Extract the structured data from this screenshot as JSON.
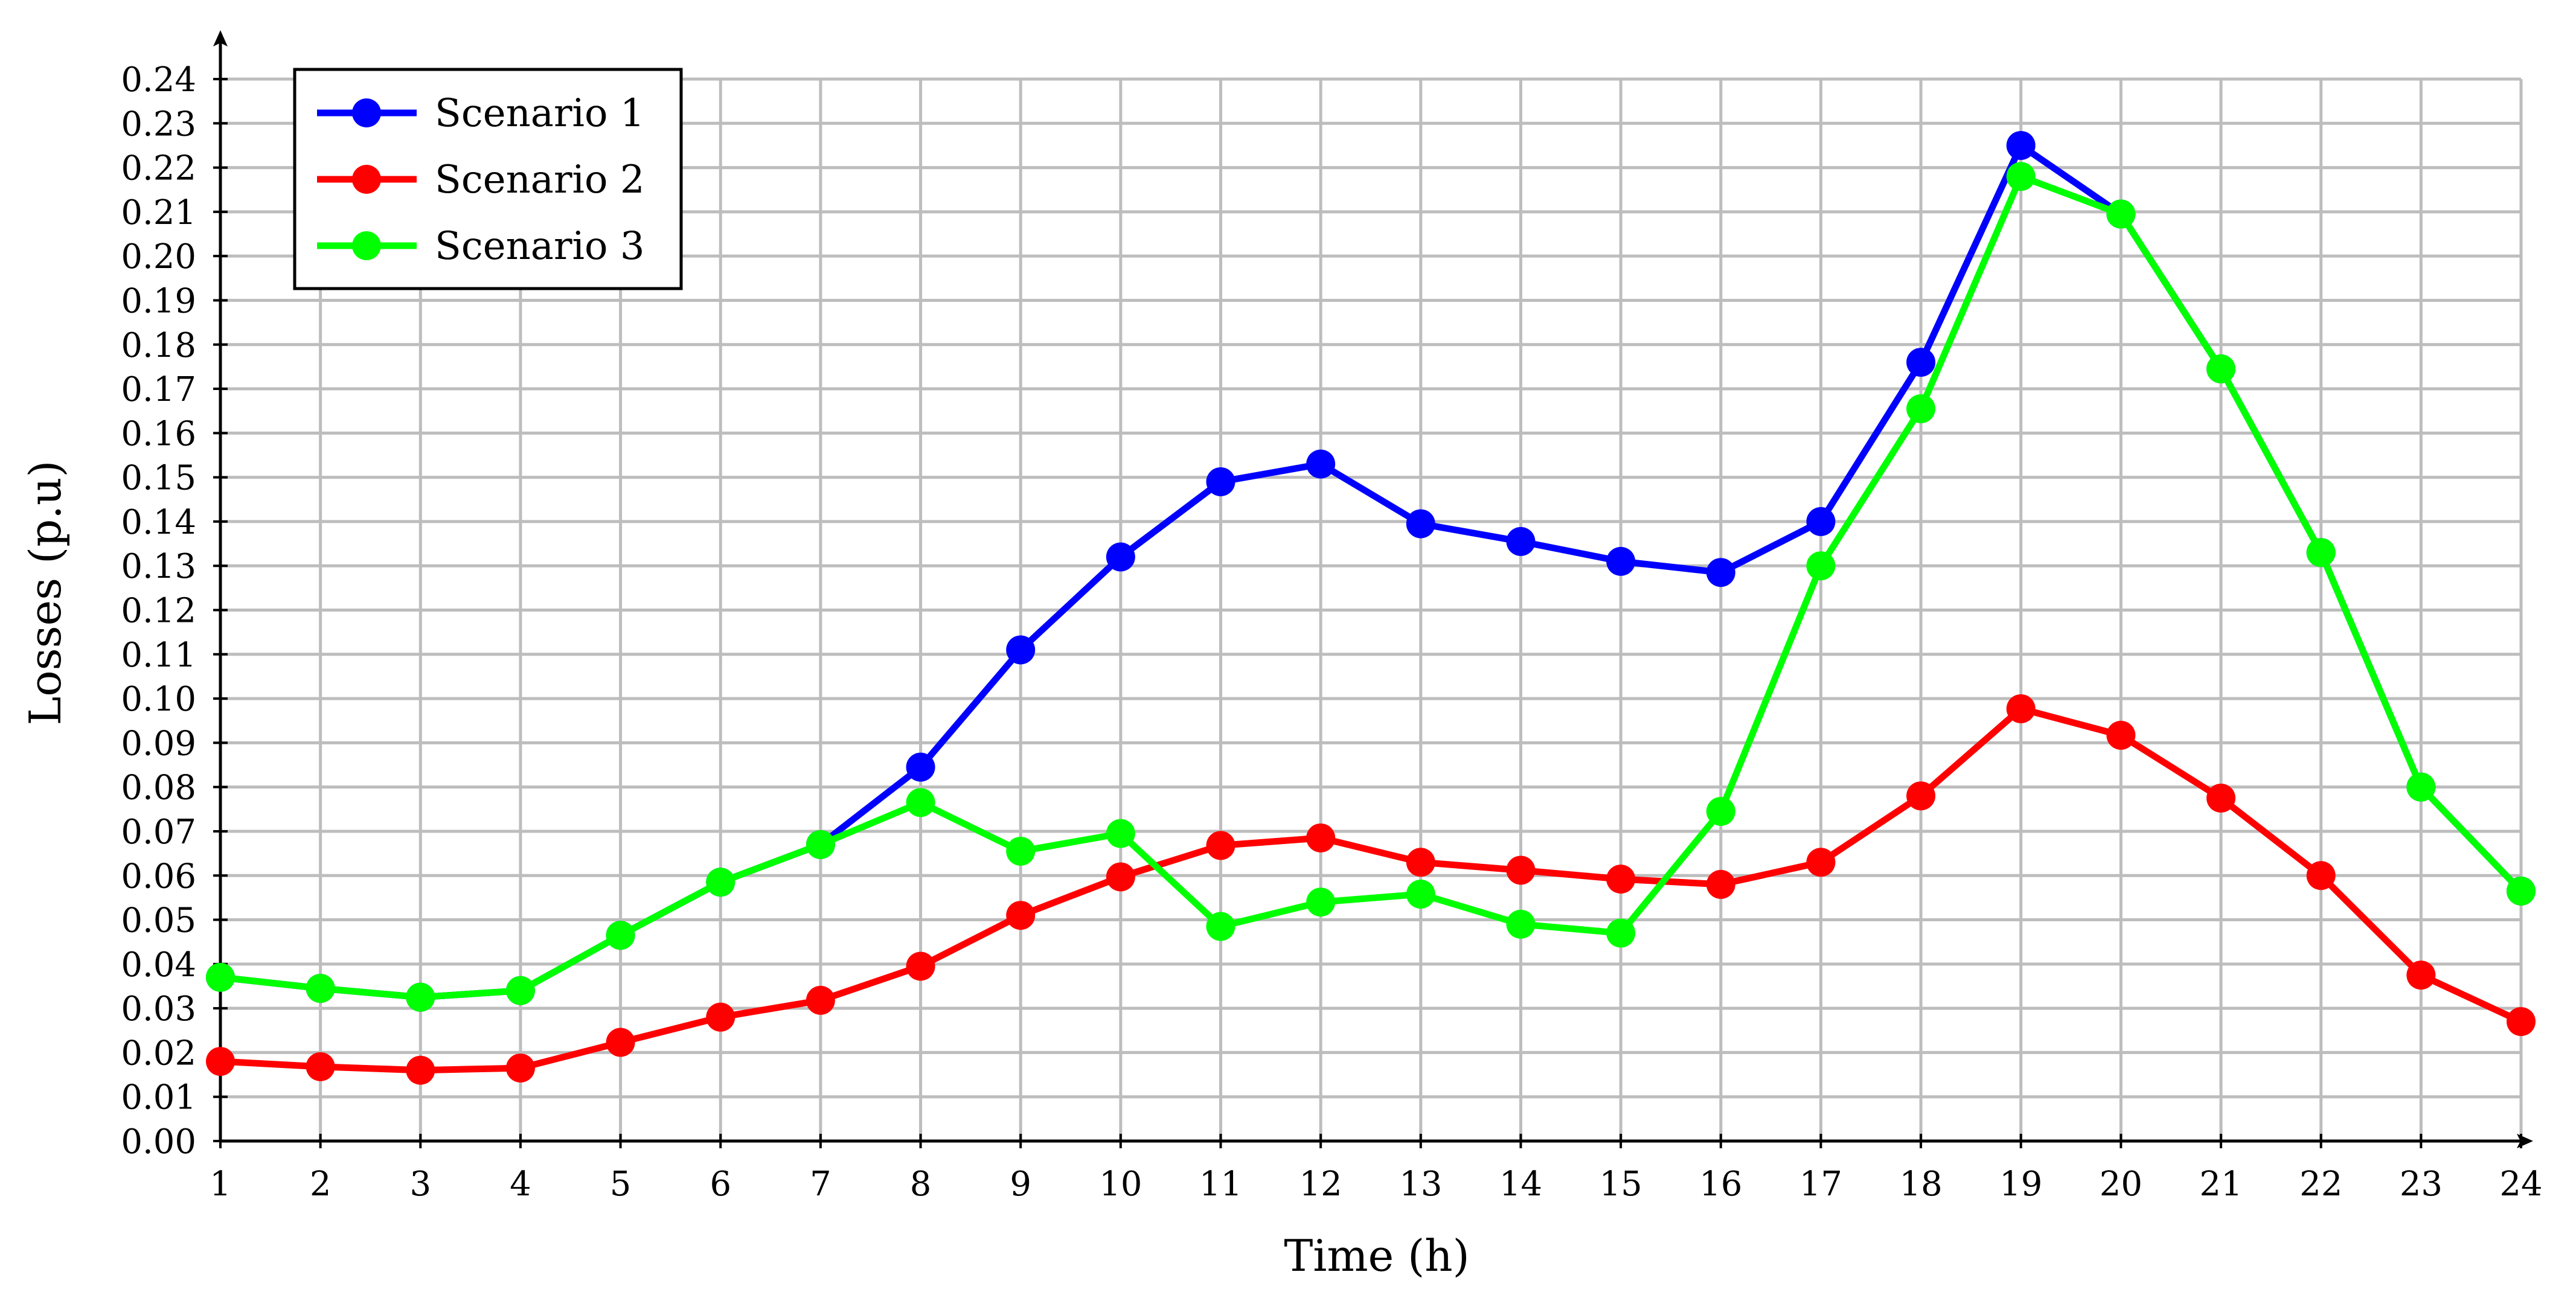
{
  "chart_data": {
    "type": "line",
    "title": "",
    "xlabel": "Time (h)",
    "ylabel": "Losses (p.u)",
    "x": [
      1,
      2,
      3,
      4,
      5,
      6,
      7,
      8,
      9,
      10,
      11,
      12,
      13,
      14,
      15,
      16,
      17,
      18,
      19,
      20,
      21,
      22,
      23,
      24
    ],
    "xlim": [
      1,
      24
    ],
    "ylim": [
      0,
      0.24
    ],
    "yticks": [
      "0.00",
      "0.01",
      "0.02",
      "0.03",
      "0.04",
      "0.05",
      "0.06",
      "0.07",
      "0.08",
      "0.09",
      "0.10",
      "0.11",
      "0.12",
      "0.13",
      "0.14",
      "0.15",
      "0.16",
      "0.17",
      "0.18",
      "0.19",
      "0.20",
      "0.21",
      "0.22",
      "0.23",
      "0.24"
    ],
    "xticks": [
      "1",
      "2",
      "3",
      "4",
      "5",
      "6",
      "7",
      "8",
      "9",
      "10",
      "11",
      "12",
      "13",
      "14",
      "15",
      "16",
      "17",
      "18",
      "19",
      "20",
      "21",
      "22",
      "23",
      "24"
    ],
    "grid": true,
    "legend_position": "top-left",
    "series": [
      {
        "name": "Scenario 1",
        "color": "#0000ff",
        "values": [
          0.037,
          0.0345,
          0.0325,
          0.034,
          0.0465,
          0.0585,
          0.067,
          0.0845,
          0.111,
          0.132,
          0.149,
          0.153,
          0.1395,
          0.1355,
          0.131,
          0.1285,
          0.14,
          0.176,
          0.225,
          0.2095,
          0.1745,
          0.133,
          0.08,
          0.0565
        ]
      },
      {
        "name": "Scenario 2",
        "color": "#ff0000",
        "values": [
          0.018,
          0.0168,
          0.016,
          0.0165,
          0.0223,
          0.028,
          0.0318,
          0.0395,
          0.051,
          0.0597,
          0.0668,
          0.0685,
          0.063,
          0.0612,
          0.0592,
          0.058,
          0.063,
          0.078,
          0.0977,
          0.0917,
          0.0775,
          0.06,
          0.0375,
          0.027
        ]
      },
      {
        "name": "Scenario 3",
        "color": "#00ff00",
        "values": [
          0.037,
          0.0345,
          0.0325,
          0.034,
          0.0465,
          0.0585,
          0.067,
          0.0765,
          0.0655,
          0.0695,
          0.0485,
          0.054,
          0.0558,
          0.049,
          0.047,
          0.0745,
          0.13,
          0.1655,
          0.218,
          0.2095,
          0.1745,
          0.133,
          0.08,
          0.0565
        ]
      }
    ]
  }
}
